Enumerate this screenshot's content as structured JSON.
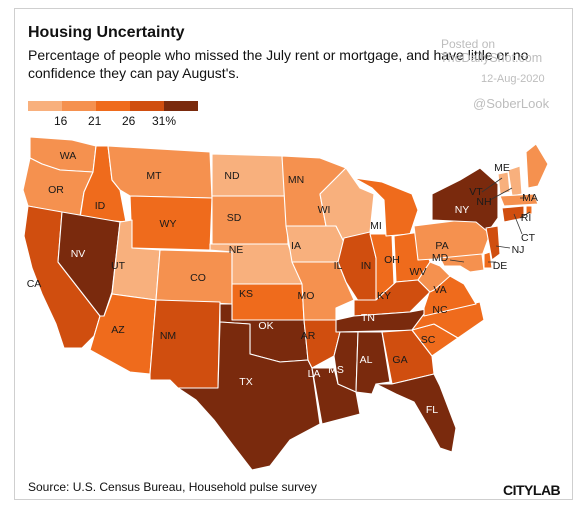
{
  "title": "Housing Uncertainty",
  "subtitle": "Percentage of people who missed the July rent or mortgage, and have little or no confidence they can pay August's.",
  "watermark": {
    "posted": "Posted on",
    "site": "TheDailyShot.com",
    "date": "12-Aug-2020",
    "handle": "@SoberLook"
  },
  "legend": {
    "colors": [
      "#f8b07d",
      "#f5914f",
      "#ef6b1c",
      "#d04e0f",
      "#7a2a0d"
    ],
    "labels": [
      "16",
      "21",
      "26",
      "31%"
    ]
  },
  "source": "Source: U.S. Census Bureau, Household pulse survey",
  "logo": "CITYLAB",
  "states": [
    {
      "abbr": "WA",
      "bin": 1
    },
    {
      "abbr": "OR",
      "bin": 1
    },
    {
      "abbr": "CA",
      "bin": 3
    },
    {
      "abbr": "ID",
      "bin": 2
    },
    {
      "abbr": "NV",
      "bin": 4
    },
    {
      "abbr": "MT",
      "bin": 1
    },
    {
      "abbr": "WY",
      "bin": 2
    },
    {
      "abbr": "UT",
      "bin": 0
    },
    {
      "abbr": "AZ",
      "bin": 2
    },
    {
      "abbr": "CO",
      "bin": 1
    },
    {
      "abbr": "NM",
      "bin": 3
    },
    {
      "abbr": "ND",
      "bin": 0
    },
    {
      "abbr": "SD",
      "bin": 1
    },
    {
      "abbr": "NE",
      "bin": 0
    },
    {
      "abbr": "KS",
      "bin": 2
    },
    {
      "abbr": "OK",
      "bin": 4
    },
    {
      "abbr": "TX",
      "bin": 4
    },
    {
      "abbr": "MN",
      "bin": 1
    },
    {
      "abbr": "IA",
      "bin": 0
    },
    {
      "abbr": "MO",
      "bin": 1
    },
    {
      "abbr": "AR",
      "bin": 3
    },
    {
      "abbr": "LA",
      "bin": 4
    },
    {
      "abbr": "WI",
      "bin": 0
    },
    {
      "abbr": "IL",
      "bin": 3
    },
    {
      "abbr": "IN",
      "bin": 2
    },
    {
      "abbr": "MI",
      "bin": 2
    },
    {
      "abbr": "OH",
      "bin": 2
    },
    {
      "abbr": "KY",
      "bin": 3
    },
    {
      "abbr": "TN",
      "bin": 4
    },
    {
      "abbr": "MS",
      "bin": 4
    },
    {
      "abbr": "AL",
      "bin": 4
    },
    {
      "abbr": "GA",
      "bin": 3
    },
    {
      "abbr": "FL",
      "bin": 4
    },
    {
      "abbr": "SC",
      "bin": 2
    },
    {
      "abbr": "NC",
      "bin": 2
    },
    {
      "abbr": "VA",
      "bin": 2
    },
    {
      "abbr": "WV",
      "bin": 1
    },
    {
      "abbr": "PA",
      "bin": 1
    },
    {
      "abbr": "NY",
      "bin": 4
    },
    {
      "abbr": "ME",
      "bin": 1
    },
    {
      "abbr": "VT",
      "bin": 0
    },
    {
      "abbr": "NH",
      "bin": 0
    },
    {
      "abbr": "MA",
      "bin": 1
    },
    {
      "abbr": "RI",
      "bin": 2
    },
    {
      "abbr": "CT",
      "bin": 3
    },
    {
      "abbr": "NJ",
      "bin": 3
    },
    {
      "abbr": "DE",
      "bin": 2
    },
    {
      "abbr": "MD",
      "bin": 1
    }
  ]
}
